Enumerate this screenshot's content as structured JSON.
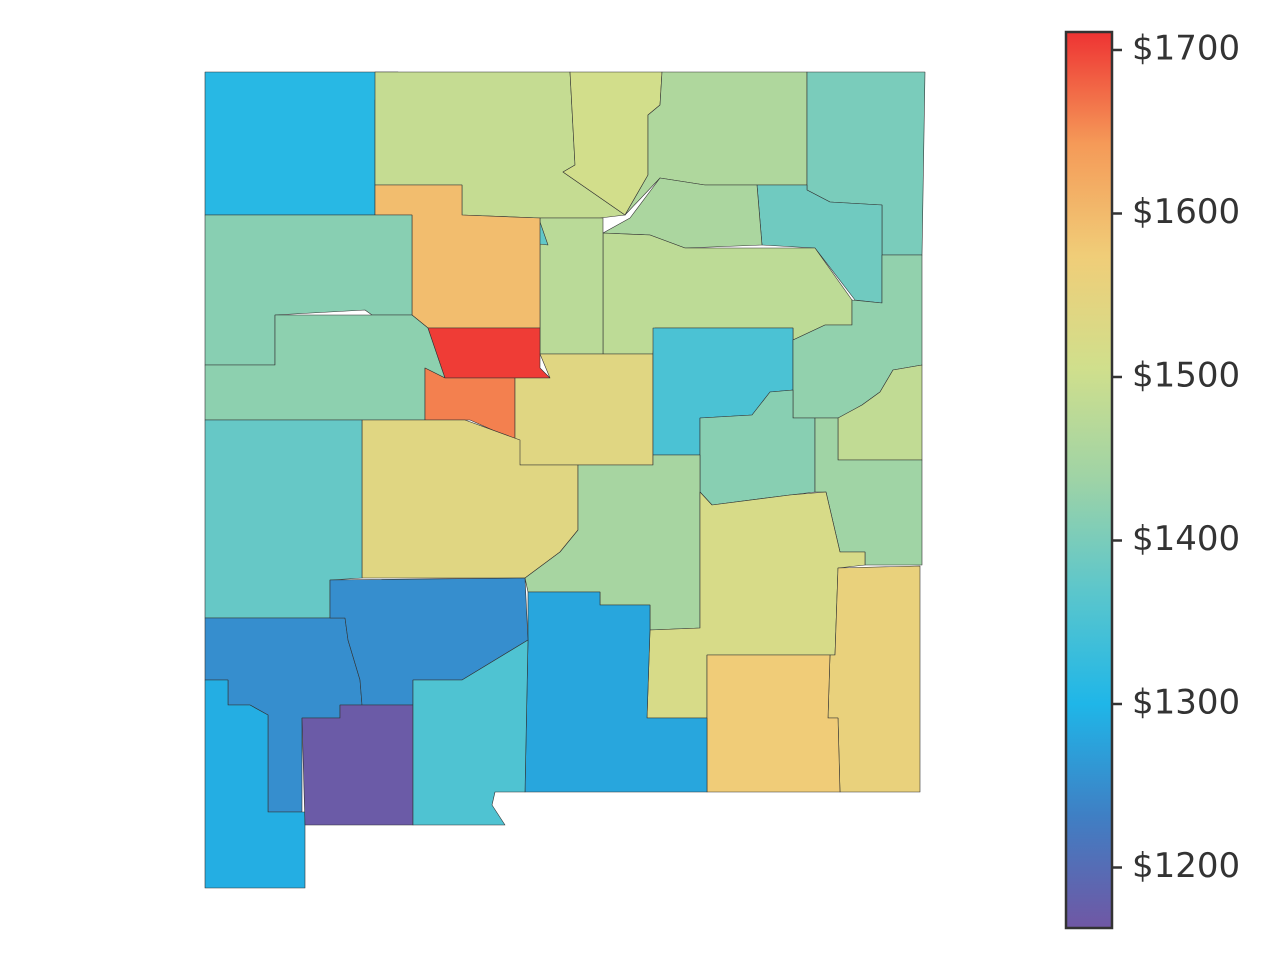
{
  "chart_data": {
    "type": "choropleth",
    "values": [
      1310,
      1490,
      1510,
      1460,
      1400,
      1390,
      1455,
      1480,
      1475,
      1375,
      1595,
      1415,
      1420,
      1705,
      1660,
      1540,
      1540,
      1380,
      1350,
      1425,
      1485,
      1415,
      1440,
      1450,
      1520,
      1560,
      1575,
      1280,
      1250,
      1250,
      1290,
      1170,
      1355
    ],
    "colorbar": {
      "lim": [
        1163,
        1711
      ],
      "ticks": [
        {
          "value": 1200,
          "label": "$1200"
        },
        {
          "value": 1300,
          "label": "$1300"
        },
        {
          "value": 1400,
          "label": "$1400"
        },
        {
          "value": 1500,
          "label": "$1500"
        },
        {
          "value": 1600,
          "label": "$1600"
        },
        {
          "value": 1700,
          "label": "$1700"
        }
      ],
      "colormap": [
        "#7057a4",
        "#3f7fc4",
        "#1fb6e8",
        "#5bc6cc",
        "#9ed3a6",
        "#d0df8c",
        "#f0cd78",
        "#f59a58",
        "#ee3333"
      ]
    }
  }
}
